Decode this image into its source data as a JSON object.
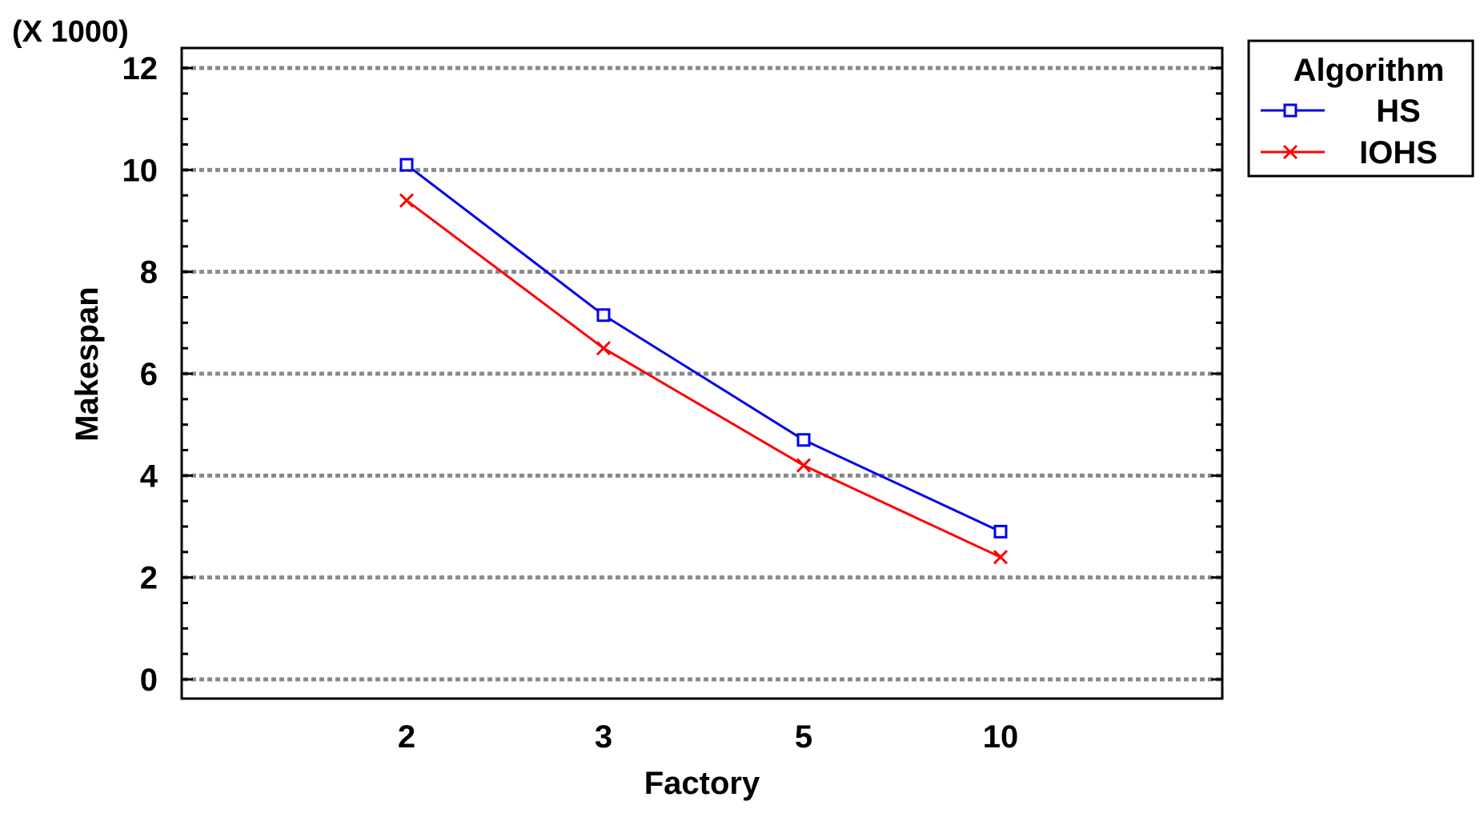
{
  "chart_data": {
    "type": "line",
    "title": "",
    "xlabel": "Factory",
    "ylabel": "Makespan",
    "y_multiplier_label": "(X 1000)",
    "categories": [
      "2",
      "3",
      "5",
      "10"
    ],
    "ylim": [
      0,
      12
    ],
    "y_ticks": [
      0,
      2,
      4,
      6,
      8,
      10,
      12
    ],
    "y_tick_labels": [
      "0",
      "2",
      "4",
      "6",
      "8",
      "10",
      "12"
    ],
    "grid": true,
    "legend_title": "Algorithm",
    "legend_position": "top-right outside plot",
    "series": [
      {
        "name": "HS",
        "values": [
          10.1,
          7.15,
          4.7,
          2.9
        ],
        "color": "#0000ee",
        "marker": "square"
      },
      {
        "name": "IOHS",
        "values": [
          9.4,
          6.5,
          4.2,
          2.4
        ],
        "color": "#ff0000",
        "marker": "x"
      }
    ]
  }
}
